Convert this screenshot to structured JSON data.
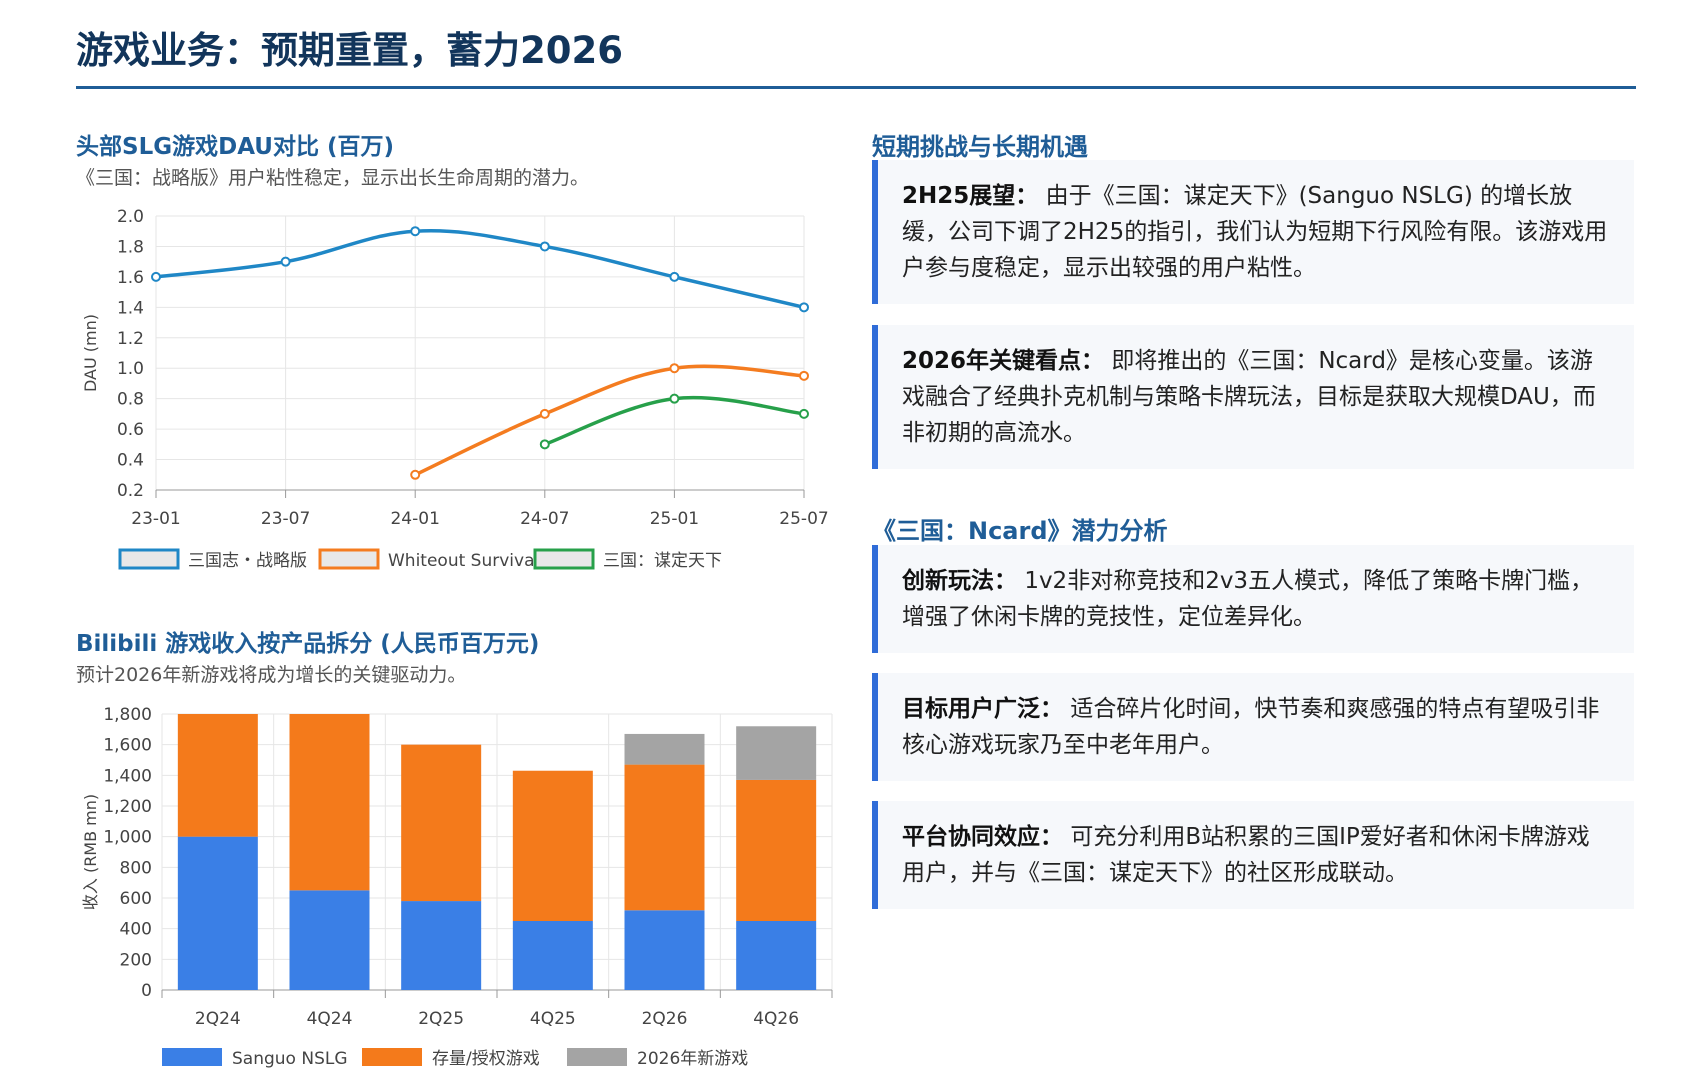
{
  "page_title": "游戏业务：预期重置，蓄力2026",
  "colors": {
    "title": "#12355b",
    "accent": "#1f5d97",
    "card_bar": "#2f6cd8",
    "series_blue": "#1f87c6",
    "series_orange": "#f47c20",
    "series_green": "#27a04a",
    "bar_blue": "#3a7fe6",
    "bar_orange": "#f47a1b",
    "bar_gray": "#a4a4a4"
  },
  "chart_data": [
    {
      "type": "line",
      "title": "头部SLG游戏DAU对比 (百万)",
      "subtitle": "《三国：战略版》用户粘性稳定，显示出长生命周期的潜力。",
      "ylabel": "DAU (mn)",
      "xlabel": "",
      "ylim": [
        0.2,
        2.0
      ],
      "y_ticks": [
        "0.2",
        "0.4",
        "0.6",
        "0.8",
        "1.0",
        "1.2",
        "1.4",
        "1.6",
        "1.8",
        "2.0"
      ],
      "x": [
        "23-01",
        "23-07",
        "24-01",
        "24-07",
        "25-01",
        "25-07"
      ],
      "grid": true,
      "legend_position": "bottom",
      "series": [
        {
          "name": "三国志・战略版",
          "color": "#1f87c6",
          "values": [
            1.6,
            1.7,
            1.9,
            1.8,
            1.6,
            1.4
          ]
        },
        {
          "name": "Whiteout Survival",
          "color": "#f47c20",
          "values": [
            null,
            null,
            0.3,
            0.7,
            1.0,
            0.95
          ]
        },
        {
          "name": "三国：谋定天下",
          "color": "#27a04a",
          "values": [
            null,
            null,
            null,
            0.5,
            0.8,
            0.7
          ]
        }
      ]
    },
    {
      "type": "bar",
      "stacked": true,
      "title": "Bilibili 游戏收入按产品拆分 (人民币百万元)",
      "subtitle": "预计2026年新游戏将成为增长的关键驱动力。",
      "ylabel": "收入 (RMB mn)",
      "xlabel": "",
      "ylim": [
        0,
        1800
      ],
      "y_ticks": [
        "0",
        "200",
        "400",
        "600",
        "800",
        "1,000",
        "1,200",
        "1,400",
        "1,600",
        "1,800"
      ],
      "categories": [
        "2Q24",
        "4Q24",
        "2Q25",
        "4Q25",
        "2Q26",
        "4Q26"
      ],
      "grid": true,
      "legend_position": "bottom",
      "series": [
        {
          "name": "Sanguo NSLG",
          "color": "#3a7fe6",
          "values": [
            1000,
            650,
            580,
            450,
            520,
            450
          ]
        },
        {
          "name": "存量/授权游戏",
          "color": "#f47a1b",
          "values": [
            800,
            1150,
            1020,
            980,
            950,
            920
          ]
        },
        {
          "name": "2026年新游戏",
          "color": "#a4a4a4",
          "values": [
            0,
            0,
            0,
            0,
            200,
            350
          ]
        }
      ]
    }
  ],
  "section1": {
    "title": "短期挑战与长期机遇",
    "cards": [
      {
        "label": "2H25展望：",
        "text": "由于《三国：谋定天下》(Sanguo NSLG) 的增长放缓，公司下调了2H25的指引，我们认为短期下行风险有限。该游戏用户参与度稳定，显示出较强的用户粘性。"
      },
      {
        "label": "2026年关键看点：",
        "text": "即将推出的《三国：Ncard》是核心变量。该游戏融合了经典扑克机制与策略卡牌玩法，目标是获取大规模DAU，而非初期的高流水。"
      }
    ]
  },
  "section2": {
    "title": "《三国：Ncard》潜力分析",
    "cards": [
      {
        "label": "创新玩法：",
        "text": "1v2非对称竞技和2v3五人模式，降低了策略卡牌门槛，增强了休闲卡牌的竞技性，定位差异化。"
      },
      {
        "label": "目标用户广泛：",
        "text": "适合碎片化时间，快节奏和爽感强的特点有望吸引非核心游戏玩家乃至中老年用户。"
      },
      {
        "label": "平台协同效应：",
        "text": "可充分利用B站积累的三国IP爱好者和休闲卡牌游戏用户，并与《三国：谋定天下》的社区形成联动。"
      }
    ]
  }
}
